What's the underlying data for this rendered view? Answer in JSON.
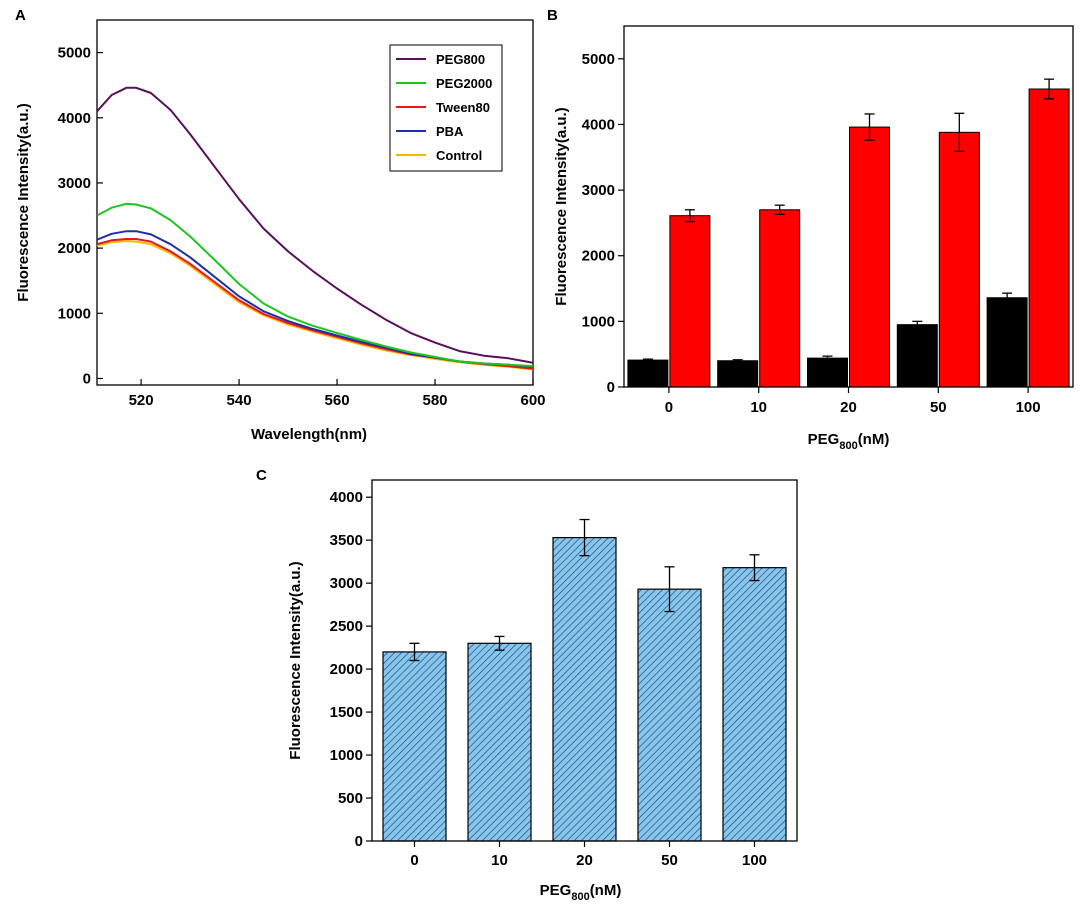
{
  "chart_data": [
    {
      "panel": "A",
      "type": "line",
      "xlabel": "Wavelength(nm)",
      "ylabel": "Fluorescence Intensity(a.u.)",
      "xlim": [
        511,
        600
      ],
      "ylim": [
        -100,
        5500
      ],
      "xticks": [
        520,
        540,
        560,
        580,
        600
      ],
      "yticks": [
        0,
        1000,
        2000,
        3000,
        4000,
        5000
      ],
      "legend_position": "top-right",
      "series": [
        {
          "name": "PEG800",
          "color": "#5a0f5e",
          "x": [
            511,
            514,
            517,
            519,
            522,
            526,
            530,
            535,
            540,
            545,
            550,
            555,
            560,
            565,
            570,
            575,
            580,
            585,
            590,
            595,
            600
          ],
          "y": [
            4100,
            4350,
            4460,
            4460,
            4380,
            4120,
            3750,
            3250,
            2750,
            2300,
            1950,
            1650,
            1380,
            1130,
            900,
            700,
            550,
            420,
            350,
            310,
            240
          ]
        },
        {
          "name": "PEG2000",
          "color": "#1fc41f",
          "x": [
            511,
            514,
            517,
            519,
            522,
            526,
            530,
            535,
            540,
            545,
            550,
            555,
            560,
            565,
            570,
            575,
            580,
            585,
            590,
            595,
            600
          ],
          "y": [
            2500,
            2620,
            2680,
            2670,
            2610,
            2430,
            2180,
            1820,
            1450,
            1150,
            950,
            810,
            700,
            590,
            490,
            400,
            330,
            260,
            230,
            210,
            190
          ]
        },
        {
          "name": "Tween80",
          "color": "#e4191c",
          "x": [
            511,
            514,
            517,
            519,
            522,
            526,
            530,
            535,
            540,
            545,
            550,
            555,
            560,
            565,
            570,
            575,
            580,
            585,
            590,
            595,
            600
          ],
          "y": [
            2060,
            2120,
            2140,
            2140,
            2100,
            1950,
            1760,
            1480,
            1200,
            990,
            850,
            740,
            640,
            540,
            450,
            370,
            320,
            260,
            220,
            190,
            150
          ]
        },
        {
          "name": "PBA",
          "color": "#1e2fa8",
          "x": [
            511,
            514,
            517,
            519,
            522,
            526,
            530,
            535,
            540,
            545,
            550,
            555,
            560,
            565,
            570,
            575,
            580,
            585,
            590,
            595,
            600
          ],
          "y": [
            2130,
            2220,
            2260,
            2260,
            2210,
            2060,
            1860,
            1560,
            1260,
            1030,
            880,
            760,
            660,
            560,
            470,
            380,
            320,
            260,
            230,
            210,
            180
          ]
        },
        {
          "name": "Control",
          "color": "#f5b800",
          "x": [
            511,
            514,
            517,
            519,
            522,
            526,
            530,
            535,
            540,
            545,
            550,
            555,
            560,
            565,
            570,
            575,
            580,
            585,
            590,
            595,
            600
          ],
          "y": [
            2040,
            2090,
            2110,
            2100,
            2060,
            1920,
            1730,
            1450,
            1170,
            970,
            830,
            720,
            620,
            520,
            430,
            360,
            300,
            250,
            210,
            180,
            140
          ]
        }
      ]
    },
    {
      "panel": "B",
      "type": "bar",
      "xlabel": "PEG",
      "xlabel_sub": "800",
      "xlabel_suffix": "(nM)",
      "ylabel": "Fluorescence Intensity(a.u.)",
      "categories": [
        "0",
        "10",
        "20",
        "50",
        "100"
      ],
      "ylim": [
        0,
        5500
      ],
      "yticks": [
        0,
        1000,
        2000,
        3000,
        4000,
        5000
      ],
      "series": [
        {
          "name": "black",
          "color": "#000000",
          "values": [
            410,
            400,
            440,
            950,
            1360
          ],
          "errors": [
            15,
            15,
            30,
            50,
            70
          ]
        },
        {
          "name": "red",
          "color": "#ff0000",
          "values": [
            2610,
            2700,
            3960,
            3880,
            4540
          ],
          "errors": [
            90,
            70,
            200,
            290,
            150
          ]
        }
      ]
    },
    {
      "panel": "C",
      "type": "bar",
      "xlabel": "PEG",
      "xlabel_sub": "800",
      "xlabel_suffix": "(nM)",
      "ylabel": "Fluorescence Intensity(a.u.)",
      "categories": [
        "0",
        "10",
        "20",
        "50",
        "100"
      ],
      "ylim": [
        0,
        4200
      ],
      "yticks": [
        0,
        500,
        1000,
        1500,
        2000,
        2500,
        3000,
        3500,
        4000
      ],
      "series": [
        {
          "name": "blue",
          "color": "#5aa5d6",
          "values": [
            2200,
            2300,
            3530,
            2930,
            3180
          ],
          "errors": [
            100,
            80,
            210,
            260,
            150
          ]
        }
      ]
    }
  ]
}
